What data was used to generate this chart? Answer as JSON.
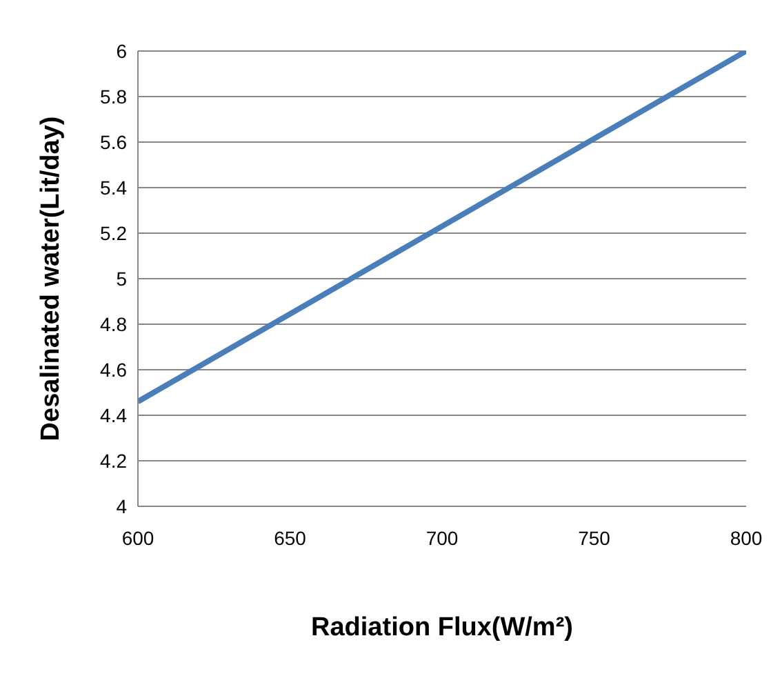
{
  "chart_data": {
    "type": "line",
    "xlabel": "Radiation Flux(W/m²)",
    "ylabel": "Desalinated water(Lit/day)",
    "x": [
      600,
      800
    ],
    "series": [
      {
        "color": "#4a7ebb",
        "values": [
          4.46,
          6
        ]
      }
    ],
    "xlim": [
      600,
      800
    ],
    "xticks": [
      600,
      650,
      700,
      750,
      800
    ],
    "ylim": [
      4,
      6
    ],
    "yticks": [
      4,
      4.2,
      4.4,
      4.6,
      4.8,
      5,
      5.2,
      5.4,
      5.6,
      5.8,
      6
    ],
    "grid": "y",
    "marker": "none",
    "line_style": "solid"
  }
}
